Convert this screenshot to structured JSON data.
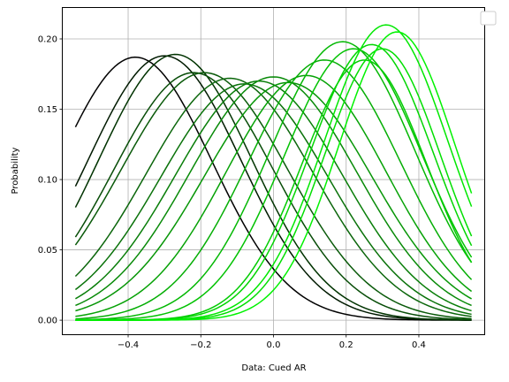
{
  "chart_data": {
    "type": "line",
    "title": "",
    "xlabel": "Data: Cued AR",
    "ylabel": "Probability",
    "xlim": [
      -0.58,
      0.58
    ],
    "ylim": [
      -0.01,
      0.222
    ],
    "xticks": [
      -0.4,
      -0.2,
      0.0,
      0.2,
      0.4
    ],
    "xtick_labels": [
      "−0.4",
      "−0.2",
      "0.0",
      "0.2",
      "0.4"
    ],
    "yticks": [
      0.0,
      0.05,
      0.1,
      0.15,
      0.2
    ],
    "ytick_labels": [
      "0.00",
      "0.05",
      "0.10",
      "0.15",
      "0.20"
    ],
    "grid": true,
    "legend": "top-right, empty",
    "x_range": [
      -0.545,
      0.545
    ],
    "series": [
      {
        "mu": -0.38,
        "peak": 0.187,
        "sigma": 0.21,
        "color": "#000000"
      },
      {
        "mu": -0.3,
        "peak": 0.188,
        "sigma": 0.21,
        "color": "#001a00"
      },
      {
        "mu": -0.27,
        "peak": 0.189,
        "sigma": 0.21,
        "color": "#003300"
      },
      {
        "mu": -0.22,
        "peak": 0.176,
        "sigma": 0.22,
        "color": "#084d08"
      },
      {
        "mu": -0.19,
        "peak": 0.176,
        "sigma": 0.23,
        "color": "#0a5a0a"
      },
      {
        "mu": -0.12,
        "peak": 0.172,
        "sigma": 0.23,
        "color": "#0b660b"
      },
      {
        "mu": -0.08,
        "peak": 0.168,
        "sigma": 0.23,
        "color": "#0a720a"
      },
      {
        "mu": -0.04,
        "peak": 0.17,
        "sigma": 0.23,
        "color": "#097e09"
      },
      {
        "mu": 0.0,
        "peak": 0.173,
        "sigma": 0.23,
        "color": "#088a08"
      },
      {
        "mu": 0.04,
        "peak": 0.169,
        "sigma": 0.23,
        "color": "#079607"
      },
      {
        "mu": 0.09,
        "peak": 0.174,
        "sigma": 0.22,
        "color": "#06a206"
      },
      {
        "mu": 0.14,
        "peak": 0.185,
        "sigma": 0.21,
        "color": "#05ae05"
      },
      {
        "mu": 0.19,
        "peak": 0.198,
        "sigma": 0.2,
        "color": "#04b804"
      },
      {
        "mu": 0.22,
        "peak": 0.193,
        "sigma": 0.19,
        "color": "#03c203"
      },
      {
        "mu": 0.25,
        "peak": 0.185,
        "sigma": 0.17,
        "color": "#02cc02"
      },
      {
        "mu": 0.27,
        "peak": 0.196,
        "sigma": 0.17,
        "color": "#02d602"
      },
      {
        "mu": 0.3,
        "peak": 0.193,
        "sigma": 0.16,
        "color": "#01df01"
      },
      {
        "mu": 0.31,
        "peak": 0.21,
        "sigma": 0.17,
        "color": "#00e800"
      },
      {
        "mu": 0.34,
        "peak": 0.205,
        "sigma": 0.16,
        "color": "#00f200"
      }
    ]
  }
}
